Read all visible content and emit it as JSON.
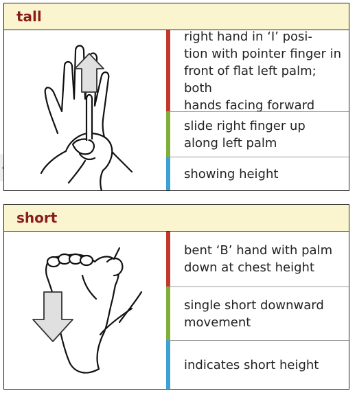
{
  "signs": [
    {
      "title": "tall",
      "rows": [
        {
          "text": "right hand in ‘I’ posi-\ntion with pointer finger in\nfront of flat left palm; both\nhands facing forward",
          "color": "#c0392b"
        },
        {
          "text": "slide right finger up\nalong left palm",
          "color": "#7fae3a"
        },
        {
          "text": "showing height",
          "color": "#3ea1d4"
        }
      ],
      "icon": "upward-arrow-hands-icon"
    },
    {
      "title": "short",
      "rows": [
        {
          "text": "bent ‘B’ hand with palm\ndown at chest height",
          "color": "#c0392b"
        },
        {
          "text": "single short downward\nmovement",
          "color": "#7fae3a"
        },
        {
          "text": "indicates short height",
          "color": "#3ea1d4"
        }
      ],
      "icon": "downward-arrow-hand-icon"
    }
  ],
  "edge_tab": {
    "glyph": "‹"
  }
}
